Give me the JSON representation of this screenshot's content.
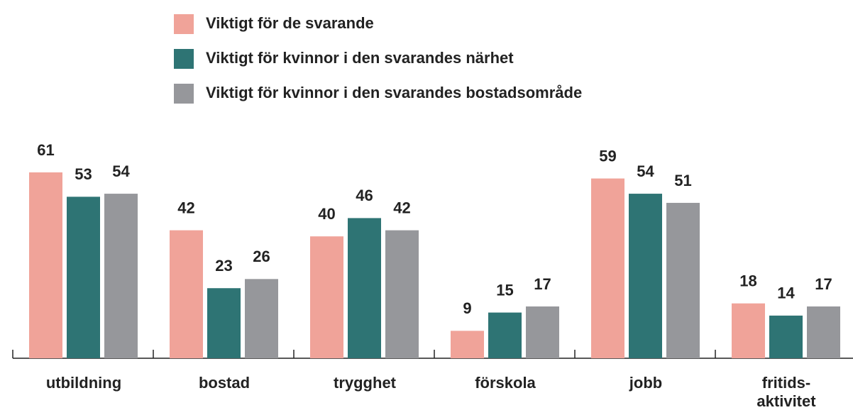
{
  "chart_data": {
    "type": "bar",
    "categories": [
      "utbildning",
      "bostad",
      "trygghet",
      "förskola",
      "jobb",
      "fritids-\naktivitet"
    ],
    "series": [
      {
        "name": "Viktigt för de svarande",
        "color": "#f0a399",
        "values": [
          61,
          42,
          40,
          9,
          59,
          18
        ]
      },
      {
        "name": "Viktigt för kvinnor i den svarandes närhet",
        "color": "#2e7474",
        "values": [
          53,
          23,
          46,
          15,
          54,
          14
        ]
      },
      {
        "name": "Viktigt för kvinnor i den svarandes bostadsområde",
        "color": "#96979b",
        "values": [
          54,
          26,
          42,
          17,
          51,
          17
        ]
      }
    ]
  }
}
